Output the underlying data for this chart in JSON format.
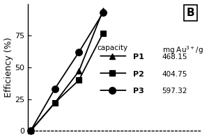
{
  "series_order": [
    "P1",
    "P2",
    "P3"
  ],
  "series": {
    "P1": {
      "x": [
        0,
        1,
        2,
        3
      ],
      "y": [
        0,
        22,
        47,
        95
      ],
      "marker": "^",
      "capacity": "468.15",
      "markersize": 6
    },
    "P2": {
      "x": [
        0,
        1,
        2,
        3
      ],
      "y": [
        0,
        22,
        40,
        77
      ],
      "marker": "s",
      "capacity": "404.75",
      "markersize": 6
    },
    "P3": {
      "x": [
        0,
        1,
        2,
        3
      ],
      "y": [
        0,
        33,
        62,
        93
      ],
      "marker": "o",
      "capacity": "597.32",
      "markersize": 7
    }
  },
  "ylabel": "Efficiency (%)",
  "ylim": [
    0,
    100
  ],
  "xlim": [
    -0.1,
    7
  ],
  "yticks": [
    0,
    25,
    50,
    75
  ],
  "panel_label": "B",
  "legend_header_col1": "capacity",
  "legend_header_col2": "mg Au$^{3+}$/g",
  "legend_entries": [
    {
      "name": "P1",
      "capacity": "468.15"
    },
    {
      "name": "P2",
      "capacity": "404.75"
    },
    {
      "name": "P3",
      "capacity": "597.32"
    }
  ],
  "linewidth": 1.3,
  "color": "black"
}
